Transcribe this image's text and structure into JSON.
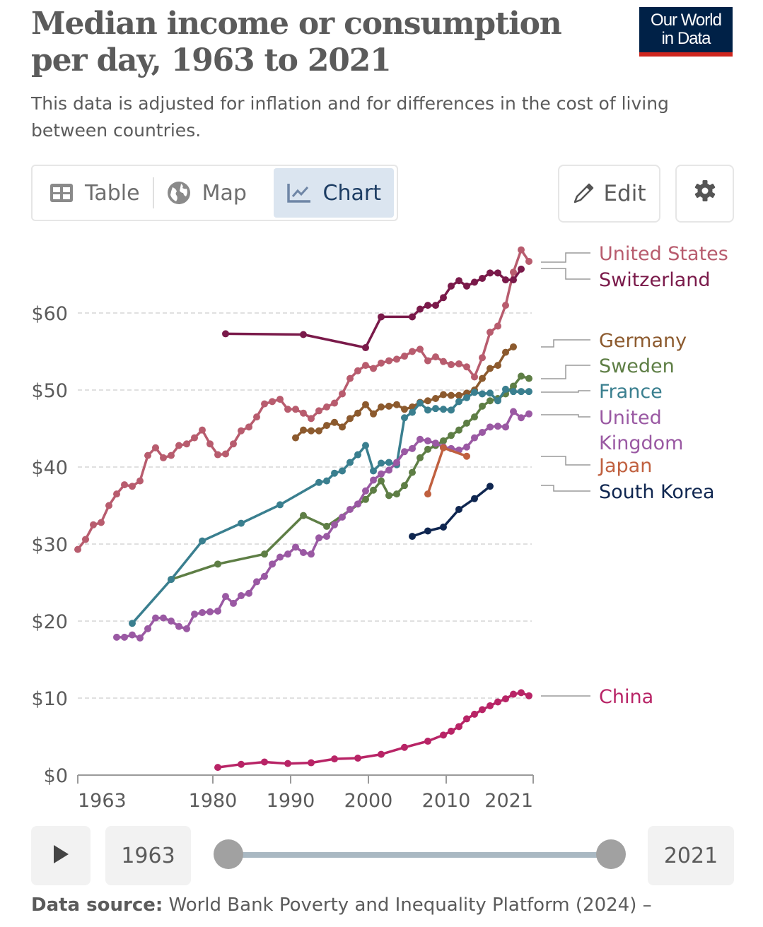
{
  "header": {
    "title": "Median income or consumption per day, 1963 to 2021",
    "subtitle": "This data is adjusted for inflation and for differences in the cost of living between countries.",
    "logo_line1": "Our World",
    "logo_line2": "in Data"
  },
  "tabs": [
    {
      "label": "Table",
      "icon": "table-icon"
    },
    {
      "label": "Map",
      "icon": "globe-icon"
    },
    {
      "label": "Chart",
      "icon": "line-chart-icon",
      "active": true
    }
  ],
  "toolbar": {
    "edit_label": "Edit",
    "settings_icon": "gear-icon"
  },
  "timeline": {
    "start_year": "1963",
    "end_year": "2021",
    "play_icon": "play-icon"
  },
  "footer": {
    "source_label": "Data source:",
    "source_text": " World Bank Poverty and Inequality Platform (2024) –"
  },
  "colors": {
    "United States": "#b85c6e",
    "Switzerland": "#7a1a4a",
    "Germany": "#8c5a2e",
    "Sweden": "#5e7e45",
    "France": "#3a7f8f",
    "United Kingdom": "#9a59a3",
    "Japan": "#c0603f",
    "South Korea": "#0f2650",
    "China": "#b82466"
  },
  "chart_data": {
    "type": "line",
    "title": "Median income or consumption per day, 1963 to 2021",
    "xlabel": "",
    "ylabel": "",
    "xlim": [
      1963,
      2021
    ],
    "ylim": [
      0,
      70
    ],
    "x_ticks": [
      "1963",
      "1980",
      "1990",
      "2000",
      "2010",
      "2021"
    ],
    "x_tick_values": [
      1963,
      1980,
      1990,
      2000,
      2010,
      2021
    ],
    "y_ticks": [
      "$0",
      "$10",
      "$20",
      "$30",
      "$40",
      "$50",
      "$60"
    ],
    "y_tick_values": [
      0,
      10,
      20,
      30,
      40,
      50,
      60
    ],
    "grid": true,
    "legend": "right",
    "series": [
      {
        "name": "United States",
        "x": [
          1963,
          1964,
          1965,
          1966,
          1967,
          1968,
          1969,
          1970,
          1971,
          1972,
          1973,
          1974,
          1975,
          1976,
          1977,
          1978,
          1979,
          1980,
          1981,
          1982,
          1983,
          1984,
          1985,
          1986,
          1987,
          1988,
          1989,
          1990,
          1991,
          1992,
          1993,
          1994,
          1995,
          1996,
          1997,
          1998,
          1999,
          2000,
          2001,
          2002,
          2003,
          2004,
          2005,
          2006,
          2007,
          2008,
          2009,
          2010,
          2011,
          2012,
          2013,
          2014,
          2015,
          2016,
          2017,
          2018,
          2019,
          2020,
          2021
        ],
        "y": [
          29.3,
          30.6,
          32.5,
          32.8,
          35.0,
          36.5,
          37.7,
          37.5,
          38.2,
          41.5,
          42.5,
          41.2,
          41.5,
          42.8,
          43.0,
          43.8,
          44.8,
          43.0,
          41.6,
          41.7,
          43.0,
          44.7,
          45.2,
          46.5,
          48.2,
          48.5,
          48.8,
          47.5,
          47.5,
          47.0,
          46.3,
          47.3,
          47.8,
          48.3,
          49.5,
          51.5,
          52.5,
          53.2,
          52.8,
          53.5,
          53.8,
          54.0,
          54.4,
          55.0,
          55.3,
          53.8,
          54.3,
          53.7,
          53.3,
          53.4,
          53.0,
          51.7,
          54.2,
          57.5,
          58.3,
          61.0,
          65.3,
          68.2,
          66.7
        ]
      },
      {
        "name": "Switzerland",
        "x": [
          1982,
          1992,
          2000,
          2002,
          2006,
          2007,
          2008,
          2009,
          2010,
          2011,
          2012,
          2013,
          2014,
          2015,
          2016,
          2017,
          2018,
          2019,
          2020
        ],
        "y": [
          57.3,
          57.2,
          55.5,
          59.5,
          59.5,
          60.5,
          61.0,
          61.0,
          62.0,
          63.5,
          64.2,
          63.5,
          64.0,
          64.5,
          65.2,
          65.2,
          64.3,
          64.3,
          65.7
        ]
      },
      {
        "name": "Germany",
        "x": [
          1991,
          1992,
          1993,
          1994,
          1995,
          1996,
          1997,
          1998,
          1999,
          2000,
          2001,
          2002,
          2003,
          2004,
          2005,
          2006,
          2007,
          2008,
          2009,
          2010,
          2011,
          2012,
          2013,
          2014,
          2015,
          2016,
          2017,
          2018,
          2019
        ],
        "y": [
          43.8,
          44.8,
          44.7,
          44.7,
          45.4,
          45.8,
          45.2,
          46.3,
          47.0,
          48.1,
          46.9,
          47.8,
          47.9,
          48.1,
          47.5,
          47.8,
          48.4,
          48.6,
          48.9,
          49.4,
          49.3,
          49.3,
          49.6,
          50.0,
          51.5,
          52.8,
          53.2,
          54.9,
          55.6
        ]
      },
      {
        "name": "Sweden",
        "x": [
          1975,
          1981,
          1987,
          1992,
          1995,
          2000,
          2001,
          2002,
          2003,
          2004,
          2005,
          2006,
          2007,
          2008,
          2009,
          2010,
          2011,
          2012,
          2013,
          2014,
          2015,
          2016,
          2017,
          2018,
          2019,
          2020,
          2021
        ],
        "y": [
          25.4,
          27.4,
          28.7,
          33.7,
          32.3,
          35.8,
          37.0,
          38.2,
          36.3,
          36.5,
          37.6,
          39.3,
          41.2,
          42.3,
          42.8,
          43.4,
          44.1,
          44.8,
          45.7,
          46.5,
          47.9,
          48.6,
          48.9,
          49.5,
          50.5,
          51.8,
          51.5
        ]
      },
      {
        "name": "France",
        "x": [
          1970,
          1975,
          1979,
          1984,
          1989,
          1994,
          1995,
          1996,
          1997,
          1998,
          1999,
          2000,
          2001,
          2002,
          2003,
          2004,
          2005,
          2006,
          2007,
          2008,
          2009,
          2010,
          2011,
          2012,
          2013,
          2014,
          2015,
          2016,
          2017,
          2018,
          2019,
          2020,
          2021
        ],
        "y": [
          19.7,
          25.4,
          30.4,
          32.7,
          35.1,
          38.0,
          38.2,
          39.2,
          39.5,
          40.6,
          41.6,
          42.8,
          39.5,
          40.5,
          40.6,
          40.3,
          46.4,
          47.1,
          48.3,
          47.4,
          47.6,
          47.5,
          47.4,
          48.5,
          49.0,
          49.7,
          49.5,
          49.6,
          48.6,
          50.1,
          49.8,
          49.8,
          49.8
        ]
      },
      {
        "name": "United Kingdom",
        "x": [
          1968,
          1969,
          1970,
          1971,
          1972,
          1973,
          1974,
          1975,
          1976,
          1977,
          1978,
          1979,
          1980,
          1981,
          1982,
          1983,
          1984,
          1985,
          1986,
          1987,
          1988,
          1989,
          1990,
          1991,
          1992,
          1993,
          1994,
          1995,
          1996,
          1997,
          1998,
          1999,
          2000,
          2001,
          2002,
          2003,
          2004,
          2005,
          2006,
          2007,
          2008,
          2009,
          2010,
          2011,
          2012,
          2013,
          2014,
          2015,
          2016,
          2017,
          2018,
          2019,
          2020,
          2021
        ],
        "y": [
          17.9,
          17.9,
          18.2,
          17.8,
          19.0,
          20.4,
          20.4,
          20.0,
          19.3,
          19.0,
          20.9,
          21.1,
          21.2,
          21.3,
          23.2,
          22.3,
          23.3,
          23.6,
          25.1,
          25.8,
          27.4,
          28.3,
          28.7,
          29.6,
          28.9,
          28.7,
          30.8,
          31.0,
          32.5,
          33.5,
          34.5,
          35.2,
          36.9,
          38.3,
          39.1,
          39.6,
          40.6,
          42.0,
          42.4,
          43.6,
          43.4,
          43.1,
          42.6,
          42.4,
          42.2,
          42.6,
          43.8,
          44.5,
          45.2,
          45.3,
          45.2,
          47.2,
          46.4,
          46.9
        ]
      },
      {
        "name": "Japan",
        "x": [
          2008,
          2010,
          2013
        ],
        "y": [
          36.5,
          42.5,
          41.4
        ]
      },
      {
        "name": "South Korea",
        "x": [
          2006,
          2008,
          2010,
          2012,
          2014,
          2016
        ],
        "y": [
          31.0,
          31.7,
          32.2,
          34.5,
          35.9,
          37.5
        ]
      },
      {
        "name": "China",
        "x": [
          1981,
          1984,
          1987,
          1990,
          1993,
          1996,
          1999,
          2002,
          2005,
          2008,
          2010,
          2011,
          2012,
          2013,
          2014,
          2015,
          2016,
          2017,
          2018,
          2019,
          2020,
          2021
        ],
        "y": [
          1.0,
          1.4,
          1.7,
          1.5,
          1.6,
          2.1,
          2.2,
          2.7,
          3.6,
          4.4,
          5.2,
          5.7,
          6.3,
          7.3,
          7.9,
          8.5,
          9.0,
          9.5,
          9.9,
          10.5,
          10.7,
          10.3
        ]
      }
    ],
    "labels": [
      {
        "name": "United States",
        "lines": [
          "United States"
        ]
      },
      {
        "name": "Switzerland",
        "lines": [
          "Switzerland"
        ]
      },
      {
        "name": "Germany",
        "lines": [
          "Germany"
        ]
      },
      {
        "name": "Sweden",
        "lines": [
          "Sweden"
        ]
      },
      {
        "name": "France",
        "lines": [
          "France"
        ]
      },
      {
        "name": "United Kingdom",
        "lines": [
          "United",
          "Kingdom"
        ]
      },
      {
        "name": "Japan",
        "lines": [
          "Japan"
        ]
      },
      {
        "name": "South Korea",
        "lines": [
          "South Korea"
        ]
      },
      {
        "name": "China",
        "lines": [
          "China"
        ]
      }
    ]
  }
}
